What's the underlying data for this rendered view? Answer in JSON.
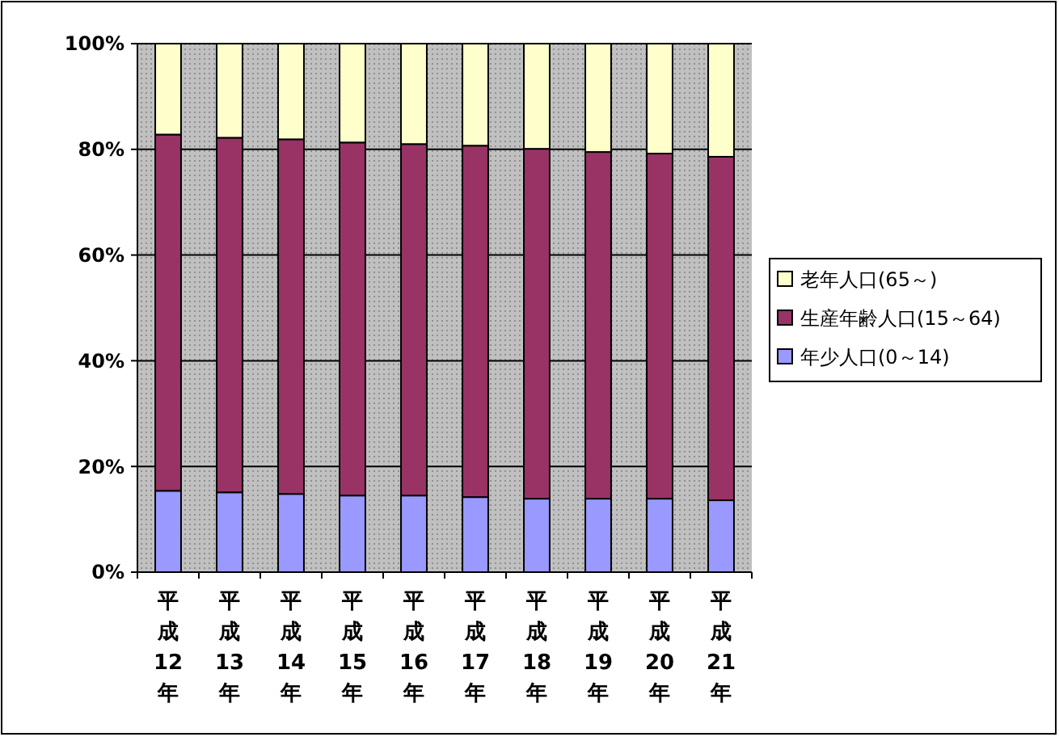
{
  "chart_data": {
    "type": "bar",
    "stacked": true,
    "categories": [
      "平成12年",
      "平成13年",
      "平成14年",
      "平成15年",
      "平成16年",
      "平成17年",
      "平成18年",
      "平成19年",
      "平成20年",
      "平成21年"
    ],
    "series": [
      {
        "name": "年少人口(0～14)",
        "color": "#9999ff",
        "values": [
          15.4,
          15.1,
          14.8,
          14.5,
          14.5,
          14.2,
          13.9,
          13.9,
          13.9,
          13.6
        ]
      },
      {
        "name": "生産年齢人口(15～64)",
        "color": "#993366",
        "values": [
          67.4,
          67.1,
          67.1,
          66.8,
          66.5,
          66.5,
          66.2,
          65.6,
          65.3,
          65.0
        ]
      },
      {
        "name": "老年人口(65～)",
        "color": "#ffffcc",
        "values": [
          17.2,
          17.8,
          18.1,
          18.7,
          19.0,
          19.3,
          19.9,
          20.5,
          20.8,
          21.4
        ]
      }
    ],
    "ylim": [
      0,
      100
    ],
    "yticks": [
      {
        "value": 0,
        "label": "0%"
      },
      {
        "value": 20,
        "label": "20%"
      },
      {
        "value": 40,
        "label": "40%"
      },
      {
        "value": 60,
        "label": "60%"
      },
      {
        "value": 80,
        "label": "80%"
      },
      {
        "value": 100,
        "label": "100%"
      }
    ],
    "grid": "y",
    "legend": "right"
  }
}
